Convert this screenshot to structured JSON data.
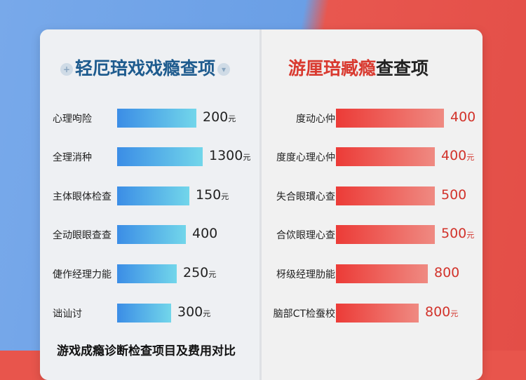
{
  "colors": {
    "left_accent": "#3b8de6",
    "right_accent": "#ec3b37",
    "left_title": "#1e5b8e"
  },
  "chart_data": [
    {
      "type": "bar",
      "orientation": "horizontal",
      "title": "轻厄琣戏戏瘾查项",
      "categories": [
        "心理呴险",
        "全理消种",
        "主体眼体检查",
        "全动眼眼查查",
        "倢作经理力能",
        "诎讪讨"
      ],
      "values": [
        "200",
        "1300",
        "150",
        "400",
        "250",
        "300"
      ],
      "units": [
        "元",
        "元",
        "元",
        "",
        "元",
        "元"
      ],
      "bar_fill_percent": [
        87,
        94,
        79,
        75,
        65,
        59
      ]
    },
    {
      "type": "bar",
      "orientation": "horizontal",
      "title_red": "游厘琣臧瘾",
      "title_black": "查查项",
      "categories": [
        "度动心仲",
        "度度心理心仲",
        "失合眼瑻心查",
        "合佽眼理心查",
        "枒级经理肋能",
        "脑部CT检蚕校"
      ],
      "values": [
        "400",
        "400",
        "500",
        "500",
        "800",
        "800"
      ],
      "units": [
        "",
        "元",
        "",
        "元",
        "",
        "元"
      ],
      "bar_fill_percent": [
        96,
        88,
        88,
        88,
        82,
        74
      ]
    }
  ],
  "footer": "游戏成瘾诊断检查项目及费用对比"
}
